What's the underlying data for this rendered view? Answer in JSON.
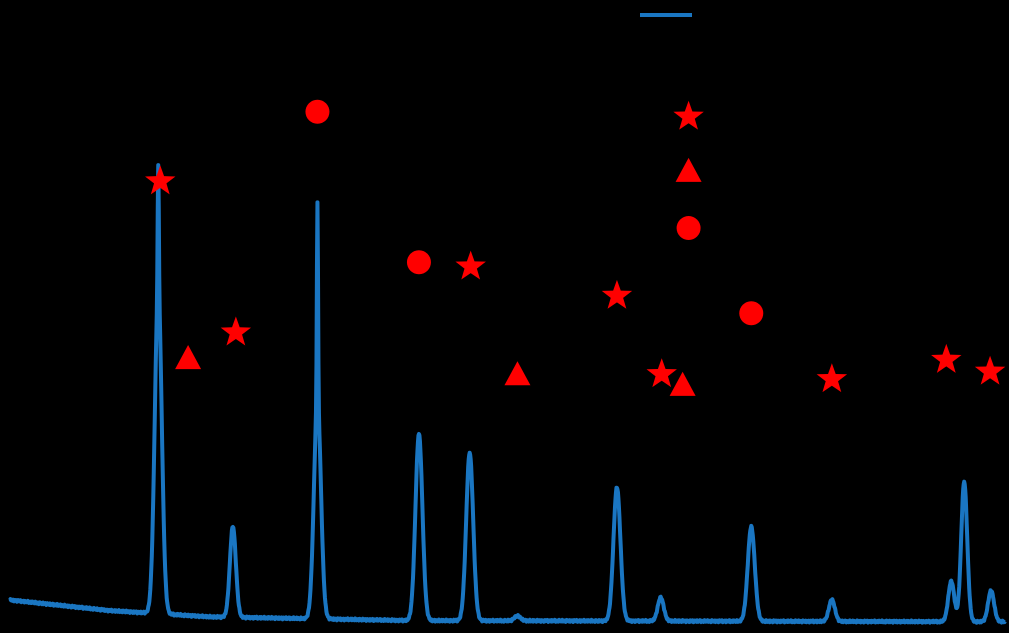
{
  "colors": {
    "background": "#000000",
    "trace": "#1a76c2",
    "marker": "#ff0000"
  },
  "chart_data": {
    "type": "line",
    "title": "",
    "xlabel": "",
    "ylabel": "",
    "xlim": [
      0,
      100
    ],
    "ylim": [
      0,
      100
    ],
    "grid": false,
    "legend": {
      "position": "top-center",
      "entries": [
        {
          "name": "",
          "color": "#1a76c2",
          "marker": "line"
        },
        {
          "name": "",
          "color": "#ff0000",
          "marker": "star"
        },
        {
          "name": "",
          "color": "#ff0000",
          "marker": "triangle"
        },
        {
          "name": "",
          "color": "#ff0000",
          "marker": "circle"
        }
      ]
    },
    "series": [
      {
        "name": "",
        "style": "line",
        "color": "#1a76c2",
        "baseline": [
          [
            0,
            4.5
          ],
          [
            10,
            2.8
          ],
          [
            20,
            1.8
          ],
          [
            40,
            1.2
          ],
          [
            100,
            1.0
          ]
        ],
        "peaks": [
          {
            "x": 14.9,
            "height": 52,
            "width": 0.35,
            "sharp": 20
          },
          {
            "x": 22.4,
            "height": 14.6,
            "width": 0.3
          },
          {
            "x": 30.9,
            "height": 35,
            "width": 0.35,
            "sharp": 32
          },
          {
            "x": 41.1,
            "height": 30,
            "width": 0.35
          },
          {
            "x": 46.2,
            "height": 27,
            "width": 0.35
          },
          {
            "x": 51.0,
            "height": 0.8,
            "width": 0.3
          },
          {
            "x": 61.0,
            "height": 21.5,
            "width": 0.35
          },
          {
            "x": 65.4,
            "height": 3.8,
            "width": 0.3
          },
          {
            "x": 74.5,
            "height": 15.2,
            "width": 0.35
          },
          {
            "x": 82.6,
            "height": 3.5,
            "width": 0.3
          },
          {
            "x": 94.6,
            "height": 6.5,
            "width": 0.3
          },
          {
            "x": 95.9,
            "height": 22.5,
            "width": 0.3
          },
          {
            "x": 98.6,
            "height": 5.0,
            "width": 0.3
          }
        ]
      }
    ],
    "markers": [
      {
        "shape": "star",
        "x": 15.1,
        "y": 71.8
      },
      {
        "shape": "triangle",
        "x": 17.9,
        "y": 43.4
      },
      {
        "shape": "star",
        "x": 22.7,
        "y": 47.5
      },
      {
        "shape": "circle",
        "x": 30.9,
        "y": 83.0
      },
      {
        "shape": "circle",
        "x": 41.1,
        "y": 58.8
      },
      {
        "shape": "star",
        "x": 46.3,
        "y": 58.1
      },
      {
        "shape": "triangle",
        "x": 51.0,
        "y": 40.8
      },
      {
        "shape": "star",
        "x": 61.0,
        "y": 53.4
      },
      {
        "shape": "star",
        "x": 65.5,
        "y": 40.8
      },
      {
        "shape": "triangle",
        "x": 67.6,
        "y": 39.1
      },
      {
        "shape": "star",
        "x": 68.2,
        "y": 82.2
      },
      {
        "shape": "triangle",
        "x": 68.2,
        "y": 73.5
      },
      {
        "shape": "circle",
        "x": 68.2,
        "y": 64.3
      },
      {
        "shape": "circle",
        "x": 74.5,
        "y": 50.6
      },
      {
        "shape": "star",
        "x": 82.6,
        "y": 40.0
      },
      {
        "shape": "star",
        "x": 94.1,
        "y": 43.1
      },
      {
        "shape": "star",
        "x": 98.5,
        "y": 41.2
      }
    ]
  }
}
